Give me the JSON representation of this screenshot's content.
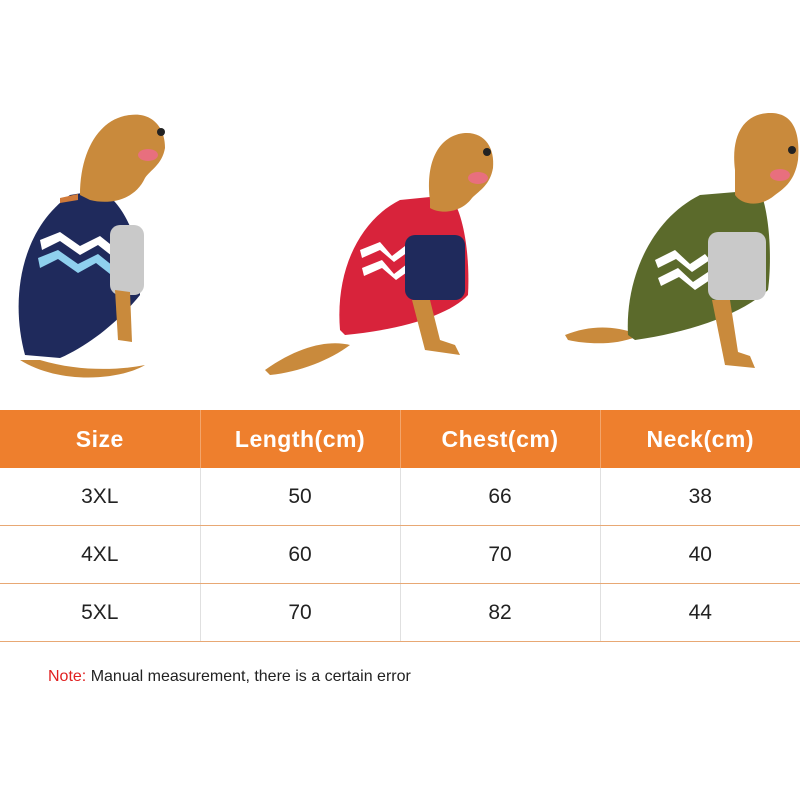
{
  "table": {
    "headers": [
      "Size",
      "Length(cm)",
      "Chest(cm)",
      "Neck(cm)"
    ],
    "rows": [
      [
        "3XL",
        "50",
        "66",
        "38"
      ],
      [
        "4XL",
        "60",
        "70",
        "40"
      ],
      [
        "5XL",
        "70",
        "82",
        "44"
      ]
    ]
  },
  "note": {
    "label": "Note:",
    "text": " Manual measurement, there is a certain error"
  },
  "photos": [
    {
      "icon": "dog-in-navy-sweater-icon",
      "color": "#1e2a5a"
    },
    {
      "icon": "dog-in-red-sweater-icon",
      "color": "#d8233b"
    },
    {
      "icon": "dog-in-green-sweater-icon",
      "color": "#5b6a2b"
    }
  ],
  "colors": {
    "header_bg": "#ee7f2d",
    "header_text": "#ffffff",
    "note_label": "#e02020"
  }
}
